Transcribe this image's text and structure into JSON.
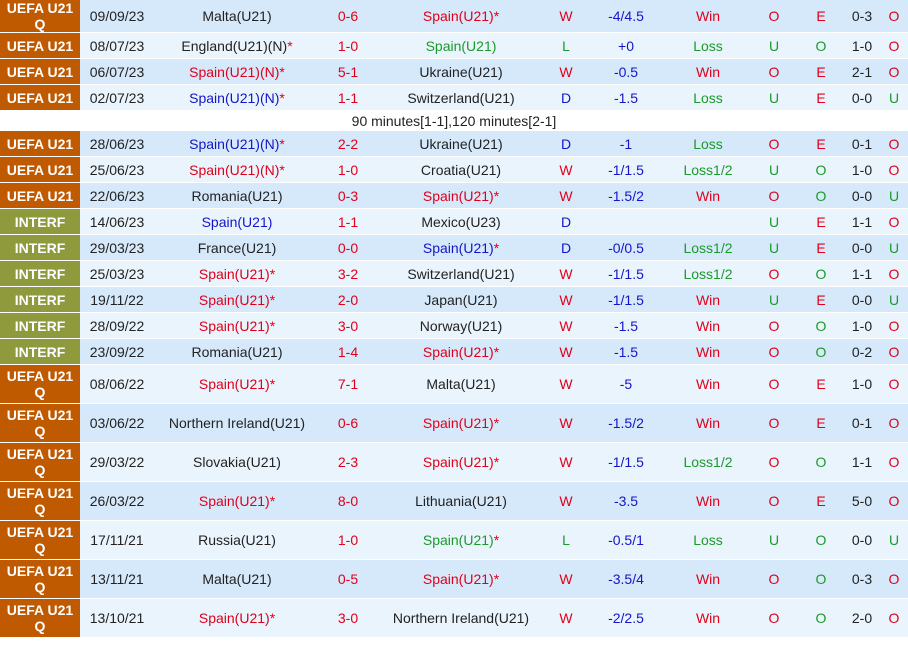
{
  "note_text": "90 minutes[1-1],120 minutes[2-1]",
  "note_after_index": 3,
  "colors": {
    "uefa": "#c05a00",
    "interf": "#8f9a3c",
    "red": "#e0001a",
    "green": "#1a9a2a",
    "blue": "#1515c8"
  },
  "rows": [
    {
      "comp": "UEFA U21 Q",
      "comp_type": "uefa",
      "date": "09/09/23",
      "home": "Malta(U21)",
      "home_suffix": "",
      "home_color": "dark",
      "score": "0-6",
      "away": "Spain(U21)",
      "away_suffix": "*",
      "away_color": "red",
      "wdl": "W",
      "handicap": "-4/4.5",
      "hresult": "Win",
      "hr_color": "red",
      "ou": "O",
      "eo": "E",
      "ht": "0-3",
      "ou2": "O",
      "tall": false
    },
    {
      "comp": "UEFA U21",
      "comp_type": "uefa",
      "date": "08/07/23",
      "home": "England(U21)(N)",
      "home_suffix": "*",
      "home_color": "dark",
      "score": "1-0",
      "away": "Spain(U21)",
      "away_suffix": "",
      "away_color": "green",
      "wdl": "L",
      "handicap": "+0",
      "hresult": "Loss",
      "hr_color": "green",
      "ou": "U",
      "eo": "O",
      "ht": "1-0",
      "ou2": "O",
      "tall": false
    },
    {
      "comp": "UEFA U21",
      "comp_type": "uefa",
      "date": "06/07/23",
      "home": "Spain(U21)(N)",
      "home_suffix": "*",
      "home_color": "red",
      "score": "5-1",
      "away": "Ukraine(U21)",
      "away_suffix": "",
      "away_color": "dark",
      "wdl": "W",
      "handicap": "-0.5",
      "hresult": "Win",
      "hr_color": "red",
      "ou": "O",
      "eo": "E",
      "ht": "2-1",
      "ou2": "O",
      "tall": false
    },
    {
      "comp": "UEFA U21",
      "comp_type": "uefa",
      "date": "02/07/23",
      "home": "Spain(U21)(N)",
      "home_suffix": "*",
      "home_color": "blue",
      "score": "1-1",
      "away": "Switzerland(U21)",
      "away_suffix": "",
      "away_color": "dark",
      "wdl": "D",
      "handicap": "-1.5",
      "hresult": "Loss",
      "hr_color": "green",
      "ou": "U",
      "eo": "E",
      "ht": "0-0",
      "ou2": "U",
      "tall": false
    },
    {
      "comp": "UEFA U21",
      "comp_type": "uefa",
      "date": "28/06/23",
      "home": "Spain(U21)(N)",
      "home_suffix": "*",
      "home_color": "blue",
      "score": "2-2",
      "away": "Ukraine(U21)",
      "away_suffix": "",
      "away_color": "dark",
      "wdl": "D",
      "handicap": "-1",
      "hresult": "Loss",
      "hr_color": "green",
      "ou": "O",
      "eo": "E",
      "ht": "0-1",
      "ou2": "O",
      "tall": false
    },
    {
      "comp": "UEFA U21",
      "comp_type": "uefa",
      "date": "25/06/23",
      "home": "Spain(U21)(N)",
      "home_suffix": "*",
      "home_color": "red",
      "score": "1-0",
      "away": "Croatia(U21)",
      "away_suffix": "",
      "away_color": "dark",
      "wdl": "W",
      "handicap": "-1/1.5",
      "hresult": "Loss1/2",
      "hr_color": "green",
      "ou": "U",
      "eo": "O",
      "ht": "1-0",
      "ou2": "O",
      "tall": false
    },
    {
      "comp": "UEFA U21",
      "comp_type": "uefa",
      "date": "22/06/23",
      "home": "Romania(U21)",
      "home_suffix": "",
      "home_color": "dark",
      "score": "0-3",
      "away": "Spain(U21)",
      "away_suffix": "*",
      "away_color": "red",
      "wdl": "W",
      "handicap": "-1.5/2",
      "hresult": "Win",
      "hr_color": "red",
      "ou": "O",
      "eo": "O",
      "ht": "0-0",
      "ou2": "U",
      "tall": false
    },
    {
      "comp": "INTERF",
      "comp_type": "interf",
      "date": "14/06/23",
      "home": "Spain(U21)",
      "home_suffix": "",
      "home_color": "blue",
      "score": "1-1",
      "away": "Mexico(U23)",
      "away_suffix": "",
      "away_color": "dark",
      "wdl": "D",
      "handicap": "",
      "hresult": "",
      "hr_color": "dark",
      "ou": "U",
      "eo": "E",
      "ht": "1-1",
      "ou2": "O",
      "tall": false
    },
    {
      "comp": "INTERF",
      "comp_type": "interf",
      "date": "29/03/23",
      "home": "France(U21)",
      "home_suffix": "",
      "home_color": "dark",
      "score": "0-0",
      "away": "Spain(U21)",
      "away_suffix": "*",
      "away_color": "blue",
      "wdl": "D",
      "handicap": "-0/0.5",
      "hresult": "Loss1/2",
      "hr_color": "green",
      "ou": "U",
      "eo": "E",
      "ht": "0-0",
      "ou2": "U",
      "tall": false
    },
    {
      "comp": "INTERF",
      "comp_type": "interf",
      "date": "25/03/23",
      "home": "Spain(U21)",
      "home_suffix": "*",
      "home_color": "red",
      "score": "3-2",
      "away": "Switzerland(U21)",
      "away_suffix": "",
      "away_color": "dark",
      "wdl": "W",
      "handicap": "-1/1.5",
      "hresult": "Loss1/2",
      "hr_color": "green",
      "ou": "O",
      "eo": "O",
      "ht": "1-1",
      "ou2": "O",
      "tall": false
    },
    {
      "comp": "INTERF",
      "comp_type": "interf",
      "date": "19/11/22",
      "home": "Spain(U21)",
      "home_suffix": "*",
      "home_color": "red",
      "score": "2-0",
      "away": "Japan(U21)",
      "away_suffix": "",
      "away_color": "dark",
      "wdl": "W",
      "handicap": "-1/1.5",
      "hresult": "Win",
      "hr_color": "red",
      "ou": "U",
      "eo": "E",
      "ht": "0-0",
      "ou2": "U",
      "tall": false
    },
    {
      "comp": "INTERF",
      "comp_type": "interf",
      "date": "28/09/22",
      "home": "Spain(U21)",
      "home_suffix": "*",
      "home_color": "red",
      "score": "3-0",
      "away": "Norway(U21)",
      "away_suffix": "",
      "away_color": "dark",
      "wdl": "W",
      "handicap": "-1.5",
      "hresult": "Win",
      "hr_color": "red",
      "ou": "O",
      "eo": "O",
      "ht": "1-0",
      "ou2": "O",
      "tall": false
    },
    {
      "comp": "INTERF",
      "comp_type": "interf",
      "date": "23/09/22",
      "home": "Romania(U21)",
      "home_suffix": "",
      "home_color": "dark",
      "score": "1-4",
      "away": "Spain(U21)",
      "away_suffix": "*",
      "away_color": "red",
      "wdl": "W",
      "handicap": "-1.5",
      "hresult": "Win",
      "hr_color": "red",
      "ou": "O",
      "eo": "O",
      "ht": "0-2",
      "ou2": "O",
      "tall": false
    },
    {
      "comp": "UEFA U21 Q",
      "comp_type": "uefa",
      "date": "08/06/22",
      "home": "Spain(U21)",
      "home_suffix": "*",
      "home_color": "red",
      "score": "7-1",
      "away": "Malta(U21)",
      "away_suffix": "",
      "away_color": "dark",
      "wdl": "W",
      "handicap": "-5",
      "hresult": "Win",
      "hr_color": "red",
      "ou": "O",
      "eo": "E",
      "ht": "1-0",
      "ou2": "O",
      "tall": true
    },
    {
      "comp": "UEFA U21 Q",
      "comp_type": "uefa",
      "date": "03/06/22",
      "home": "Northern Ireland(U21)",
      "home_suffix": "",
      "home_color": "dark",
      "score": "0-6",
      "away": "Spain(U21)",
      "away_suffix": "*",
      "away_color": "red",
      "wdl": "W",
      "handicap": "-1.5/2",
      "hresult": "Win",
      "hr_color": "red",
      "ou": "O",
      "eo": "E",
      "ht": "0-1",
      "ou2": "O",
      "tall": true
    },
    {
      "comp": "UEFA U21 Q",
      "comp_type": "uefa",
      "date": "29/03/22",
      "home": "Slovakia(U21)",
      "home_suffix": "",
      "home_color": "dark",
      "score": "2-3",
      "away": "Spain(U21)",
      "away_suffix": "*",
      "away_color": "red",
      "wdl": "W",
      "handicap": "-1/1.5",
      "hresult": "Loss1/2",
      "hr_color": "green",
      "ou": "O",
      "eo": "O",
      "ht": "1-1",
      "ou2": "O",
      "tall": true
    },
    {
      "comp": "UEFA U21 Q",
      "comp_type": "uefa",
      "date": "26/03/22",
      "home": "Spain(U21)",
      "home_suffix": "*",
      "home_color": "red",
      "score": "8-0",
      "away": "Lithuania(U21)",
      "away_suffix": "",
      "away_color": "dark",
      "wdl": "W",
      "handicap": "-3.5",
      "hresult": "Win",
      "hr_color": "red",
      "ou": "O",
      "eo": "E",
      "ht": "5-0",
      "ou2": "O",
      "tall": true
    },
    {
      "comp": "UEFA U21 Q",
      "comp_type": "uefa",
      "date": "17/11/21",
      "home": "Russia(U21)",
      "home_suffix": "",
      "home_color": "dark",
      "score": "1-0",
      "away": "Spain(U21)",
      "away_suffix": "*",
      "away_color": "green",
      "wdl": "L",
      "handicap": "-0.5/1",
      "hresult": "Loss",
      "hr_color": "green",
      "ou": "U",
      "eo": "O",
      "ht": "0-0",
      "ou2": "U",
      "tall": true
    },
    {
      "comp": "UEFA U21 Q",
      "comp_type": "uefa",
      "date": "13/11/21",
      "home": "Malta(U21)",
      "home_suffix": "",
      "home_color": "dark",
      "score": "0-5",
      "away": "Spain(U21)",
      "away_suffix": "*",
      "away_color": "red",
      "wdl": "W",
      "handicap": "-3.5/4",
      "hresult": "Win",
      "hr_color": "red",
      "ou": "O",
      "eo": "O",
      "ht": "0-3",
      "ou2": "O",
      "tall": true
    },
    {
      "comp": "UEFA U21 Q",
      "comp_type": "uefa",
      "date": "13/10/21",
      "home": "Spain(U21)",
      "home_suffix": "*",
      "home_color": "red",
      "score": "3-0",
      "away": "Northern Ireland(U21)",
      "away_suffix": "",
      "away_color": "dark",
      "wdl": "W",
      "handicap": "-2/2.5",
      "hresult": "Win",
      "hr_color": "red",
      "ou": "O",
      "eo": "O",
      "ht": "2-0",
      "ou2": "O",
      "tall": true
    }
  ]
}
